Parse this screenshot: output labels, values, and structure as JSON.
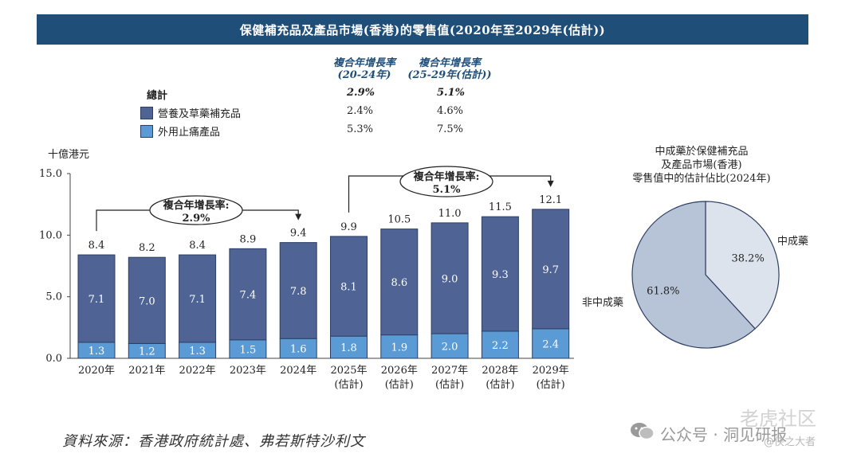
{
  "header": {
    "title": "保健補充品及產品市場(香港)的零售值(2020年至2029年(估計))"
  },
  "summary": {
    "col1_line1": "複合年增長率",
    "col1_line2": "(20-24年)",
    "col2_line1": "複合年增長率",
    "col2_line2": "(25-29年(估計))",
    "rows": [
      {
        "label": "總計",
        "v1": "2.9%",
        "v2": "5.1%"
      },
      {
        "label": "營養及草藥補充品",
        "v1": "2.4%",
        "v2": "4.6%"
      },
      {
        "label": "外用止痛產品",
        "v1": "5.3%",
        "v2": "7.5%"
      }
    ]
  },
  "colors": {
    "dark": "#4f6394",
    "light": "#5b9bd5",
    "banner": "#1f4e79",
    "pie_tcm": "#dde3ec",
    "pie_non": "#b7c3d6"
  },
  "chart_data": [
    {
      "type": "bar",
      "stacked": true,
      "ylabel": "十億港元",
      "ylim": [
        0,
        15
      ],
      "yticks": [
        "0.0",
        "5.0",
        "10.0",
        "15.0"
      ],
      "categories": [
        "2020年",
        "2021年",
        "2022年",
        "2023年",
        "2024年",
        "2025年",
        "2026年",
        "2027年",
        "2028年",
        "2029年"
      ],
      "category_sub": [
        "",
        "",
        "",
        "",
        "",
        "(估計)",
        "(估計)",
        "(估計)",
        "(估計)",
        "(估計)"
      ],
      "series": [
        {
          "name": "外用止痛產品",
          "values": [
            1.3,
            1.2,
            1.3,
            1.5,
            1.6,
            1.8,
            1.9,
            2.0,
            2.2,
            2.4
          ]
        },
        {
          "name": "營養及草藥補充品",
          "values": [
            7.1,
            7.0,
            7.1,
            7.4,
            7.8,
            8.1,
            8.6,
            9.0,
            9.3,
            9.7
          ]
        }
      ],
      "totals": [
        8.4,
        8.2,
        8.4,
        8.9,
        9.4,
        9.9,
        10.5,
        11.0,
        11.5,
        12.1
      ],
      "annotations": [
        {
          "line1": "複合年增長率:",
          "line2": "2.9%",
          "from": 0,
          "to": 4
        },
        {
          "line1": "複合年增長率:",
          "line2": "5.1%",
          "from": 5,
          "to": 9
        }
      ]
    },
    {
      "type": "pie",
      "title_lines": [
        "中成藥於保健補充品",
        "及產品市場(香港)",
        "零售值中的估計佔比(2024年)"
      ],
      "slices": [
        {
          "name": "中成藥",
          "value": 38.2,
          "label": "38.2%"
        },
        {
          "name": "非中成藥",
          "value": 61.8,
          "label": "61.8%"
        }
      ]
    }
  ],
  "footer": {
    "source": "資料來源：香港政府統計處、弗若斯特沙利文"
  },
  "watermark": {
    "wechat": "公众号 · 洞见研报",
    "brand": "老虎社区",
    "handle": "@侠之大者"
  }
}
